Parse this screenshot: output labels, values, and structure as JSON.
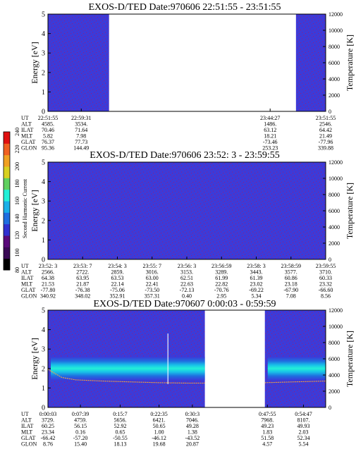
{
  "chart_data": {
    "type": "heatmap",
    "colors": {
      "background": "#3b3bd9",
      "speckle": "#8a1f8a",
      "band_outer": "#1f6ee0",
      "band_mid": "#19c0e8",
      "band_core": "#22f0d8",
      "temperature_line": "#f4a640"
    },
    "colorbar": {
      "title": "Second Harmonic Current",
      "ticks": [
        "80",
        "100",
        "120",
        "140",
        "160",
        "180",
        "200",
        "220",
        "240"
      ],
      "colors": [
        "#000000",
        "#3a0a55",
        "#5a0a7a",
        "#3030d0",
        "#1f6ee0",
        "#19b0e8",
        "#22f0d8",
        "#60d060",
        "#d8d020",
        "#f0a020",
        "#f06020",
        "#e01010"
      ]
    },
    "row_labels": [
      "UT",
      "ALT",
      "ILAT",
      "MLT",
      "GLAT",
      "GLON"
    ],
    "panels": [
      {
        "title": "EXOS-D/TED   Date:970606  22:51:55 - 23:51:55",
        "ylabel": "Energy [eV]",
        "y2label": "Temperature [K]",
        "ylim": [
          0,
          5
        ],
        "yticks": [
          "0",
          "1",
          "2",
          "3",
          "4",
          "5"
        ],
        "y2lim": [
          0,
          12000
        ],
        "y2ticks": [
          "0",
          "2000",
          "4000",
          "6000",
          "8000",
          "10000",
          "12000"
        ],
        "data_segments": [
          [
            0.0,
            0.22
          ],
          [
            0.893,
            1.0
          ]
        ],
        "band": null,
        "spike": null,
        "columns": [
          {
            "x": 0.0,
            "values": [
              "22:51:55",
              "4585.",
              "70.46",
              "5.82",
              "76.37",
              "95.36"
            ]
          },
          {
            "x": 0.12,
            "values": [
              "22:59:31",
              "3534.",
              "71.64",
              "7.98",
              "77.73",
              "144.49"
            ]
          },
          {
            "x": 0.8,
            "values": [
              "23:44:27",
              "1486.",
              "63.12",
              "18.21",
              "-73.46",
              "253.23"
            ]
          },
          {
            "x": 1.0,
            "values": [
              "23:51:55",
              "2546.",
              "64.42",
              "21.49",
              "-77.96",
              "339.88"
            ]
          }
        ]
      },
      {
        "title": "EXOS-D/TED   Date:970606  23:52: 3 - 23:59:55",
        "ylabel": "Energy [eV]",
        "y2label": "Temperature [K]",
        "ylim": [
          0,
          5
        ],
        "yticks": [
          "0",
          "1",
          "2",
          "3",
          "4",
          "5"
        ],
        "y2lim": [
          0,
          12000
        ],
        "y2ticks": [
          "0",
          "2000",
          "4000",
          "6000",
          "8000",
          "10000",
          "12000"
        ],
        "data_segments": [
          [
            0.0,
            1.0
          ]
        ],
        "band": null,
        "spike": null,
        "columns": [
          {
            "x": 0.0,
            "values": [
              "23:52: 3",
              "2566.",
              "64.38",
              "21.53",
              "-77.80",
              "340.92"
            ]
          },
          {
            "x": 0.125,
            "values": [
              "23:53: 7",
              "2722.",
              "63.95",
              "21.87",
              "-76.38",
              "348.02"
            ]
          },
          {
            "x": 0.25,
            "values": [
              "23:54: 3",
              "2859.",
              "63.53",
              "22.14",
              "-75.06",
              "352.91"
            ]
          },
          {
            "x": 0.375,
            "values": [
              "23:55: 7",
              "3016.",
              "63.00",
              "22.41",
              "-73.50",
              "357.31"
            ]
          },
          {
            "x": 0.5,
            "values": [
              "23:56: 3",
              "3153.",
              "62.51",
              "22.63",
              "-72.13",
              "0.40"
            ]
          },
          {
            "x": 0.625,
            "values": [
              "23:56:59",
              "3289.",
              "61.99",
              "22.82",
              "-70.76",
              "2.95"
            ]
          },
          {
            "x": 0.75,
            "values": [
              "23:58: 3",
              "3443.",
              "61.39",
              "23.02",
              "-69.22",
              "5.34"
            ]
          },
          {
            "x": 0.875,
            "values": [
              "23:58:59",
              "3577.",
              "60.86",
              "23.18",
              "-67.90",
              "7.08"
            ]
          },
          {
            "x": 1.0,
            "values": [
              "23:59:55",
              "3710.",
              "60.33",
              "23.32",
              "-66.60",
              "8.56"
            ]
          }
        ]
      },
      {
        "title": "EXOS-D/TED   Date:970607  0:00:03 - 0:59:59",
        "ylabel": "Energy [eV]",
        "y2label": "Temperature [K]",
        "ylim": [
          0,
          5
        ],
        "yticks": [
          "0",
          "1",
          "2",
          "3",
          "4",
          "5"
        ],
        "y2lim": [
          0,
          12000
        ],
        "y2ticks": [
          "0",
          "2000",
          "4000",
          "6000",
          "8000",
          "10000",
          "12000"
        ],
        "data_segments": [
          [
            0.0,
            0.565
          ],
          [
            0.781,
            1.0
          ]
        ],
        "band": {
          "e_low": 1.4,
          "e_high": 2.6,
          "core_low": 1.7,
          "core_high": 2.3
        },
        "spike": {
          "x": 0.432,
          "e_low": 1.2,
          "e_high": 3.8
        },
        "temperature_line": [
          {
            "x": 0.0,
            "T": 4700
          },
          {
            "x": 0.05,
            "T": 3700
          },
          {
            "x": 0.1,
            "T": 3400
          },
          {
            "x": 0.2,
            "T": 3250
          },
          {
            "x": 0.3,
            "T": 3150
          },
          {
            "x": 0.4,
            "T": 3050
          },
          {
            "x": 0.5,
            "T": 3000
          },
          {
            "x": 0.565,
            "T": 3000
          },
          {
            "x": 0.781,
            "T": 3050
          },
          {
            "x": 0.88,
            "T": 3150
          },
          {
            "x": 1.0,
            "T": 3250
          }
        ],
        "columns": [
          {
            "x": 0.0,
            "values": [
              "0:00:03",
              "3729.",
              "60.25",
              "23.34",
              "-66.42",
              "8.76"
            ]
          },
          {
            "x": 0.117,
            "values": [
              "0:07:39",
              "4759.",
              "56.15",
              "0.16",
              "-57.20",
              "15.40"
            ]
          },
          {
            "x": 0.26,
            "values": [
              "0:15:7",
              "5656.",
              "52.92",
              "0.65",
              "-50.55",
              "18.13"
            ]
          },
          {
            "x": 0.4,
            "values": [
              "0:22:35",
              "6421.",
              "50.65",
              "1.00",
              "-46.12",
              "19.68"
            ]
          },
          {
            "x": 0.52,
            "values": [
              "0:30:3",
              "7046.",
              "49.28",
              "1.38",
              "-43.52",
              "20.87"
            ]
          },
          {
            "x": 0.79,
            "values": [
              "0:47:55",
              "7968.",
              "49.23",
              "1.83",
              "51.58",
              "4.57"
            ]
          },
          {
            "x": 0.92,
            "values": [
              "0:54:47",
              "8107.",
              "49.93",
              "2.03",
              "52.34",
              "5.54"
            ]
          }
        ]
      }
    ]
  }
}
